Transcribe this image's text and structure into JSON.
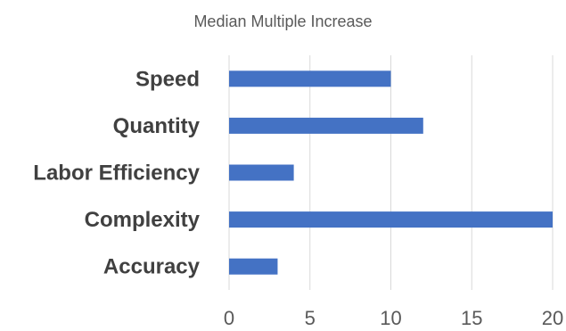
{
  "chart_data": {
    "type": "bar",
    "orientation": "horizontal",
    "title": "Median Multiple Increase",
    "xlabel": "",
    "ylabel": "",
    "categories": [
      "Speed",
      "Quantity",
      "Labor Efficiency",
      "Complexity",
      "Accuracy"
    ],
    "values": [
      10,
      12,
      4,
      20,
      3
    ],
    "xlim": [
      0,
      20
    ],
    "ticks": [
      "0",
      "5",
      "10",
      "15",
      "20"
    ],
    "grid": true,
    "legend": "none",
    "bar_color": "#4472C4",
    "grid_color": "#D9D9D9"
  }
}
